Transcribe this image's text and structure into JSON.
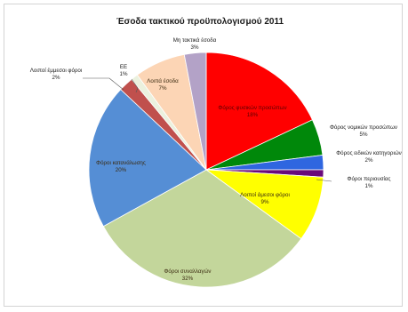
{
  "chart_data": {
    "type": "pie",
    "title": "Έσοδα τακτικού προϋπολογισμού 2011",
    "slices": [
      {
        "name": "Φόρος φυσικών προσώπων",
        "pct_label": "18%",
        "value": 18,
        "color": "#ff0000"
      },
      {
        "name": "Φόρος νομικών προσώπων",
        "pct_label": "5%",
        "value": 5,
        "color": "#00880a"
      },
      {
        "name": "Φόρος ειδικών κατηγοριών",
        "pct_label": "2%",
        "value": 2,
        "color": "#2f66e0"
      },
      {
        "name": "Φόροι περιουσίας",
        "pct_label": "1%",
        "value": 1,
        "color": "#6a0a7a"
      },
      {
        "name": "Λοιποί άμεσοι φόροι",
        "pct_label": "9%",
        "value": 9,
        "color": "#ffff00"
      },
      {
        "name": "Φόροι συναλλαγών",
        "pct_label": "32%",
        "value": 32,
        "color": "#c3d69b"
      },
      {
        "name": "Φόροι κατανάλωσης",
        "pct_label": "20%",
        "value": 20,
        "color": "#558ed5"
      },
      {
        "name": "Λοιποί έμμεσοι φόροι",
        "pct_label": "2%",
        "value": 2,
        "color": "#c0504d"
      },
      {
        "name": "ΕΕ",
        "pct_label": "1%",
        "value": 1,
        "color": "#ebf1de"
      },
      {
        "name": "Λοιπά έσοδα",
        "pct_label": "7%",
        "value": 7,
        "color": "#fcd5b5"
      },
      {
        "name": "Μη τακτικά έσοδα",
        "pct_label": "3%",
        "value": 3,
        "color": "#b3a2c7"
      }
    ]
  }
}
